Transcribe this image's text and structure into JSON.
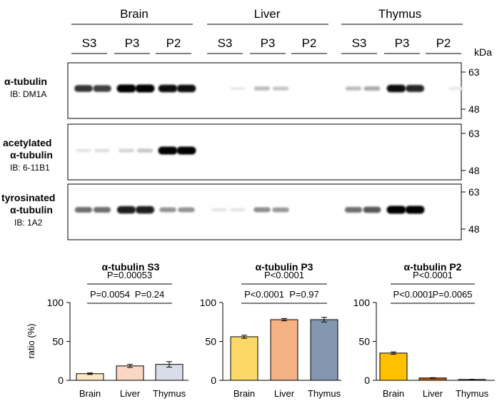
{
  "blot": {
    "tissues": [
      "Brain",
      "Liver",
      "Thymus"
    ],
    "fractions": [
      "S3",
      "P3",
      "P2"
    ],
    "kda_label": "kDa",
    "panels": [
      {
        "title_lines": [
          "α-tubulin"
        ],
        "ib": "IB: DM1A",
        "markers": [
          "63",
          "48"
        ],
        "lanes": [
          0.8,
          0.75,
          1.0,
          1.0,
          0.95,
          0.95,
          0.0,
          0.03,
          0.22,
          0.18,
          0.0,
          0.0,
          0.22,
          0.3,
          0.95,
          0.85,
          0.0,
          0.03
        ]
      },
      {
        "title_lines": [
          "acetylated",
          "α-tubulin"
        ],
        "ib": "IB: 6-11B1",
        "markers": [
          "63",
          "48"
        ],
        "lanes": [
          0.05,
          0.08,
          0.12,
          0.18,
          1.0,
          1.0,
          0.0,
          0.0,
          0.0,
          0.0,
          0.0,
          0.0,
          0.0,
          0.0,
          0.0,
          0.0,
          0.0,
          0.0
        ]
      },
      {
        "title_lines": [
          "tyrosinated",
          "α-tubulin"
        ],
        "ib": "IB: 1A2",
        "markers": [
          "63",
          "48"
        ],
        "lanes": [
          0.55,
          0.55,
          0.9,
          0.9,
          0.4,
          0.4,
          0.05,
          0.05,
          0.42,
          0.38,
          0.0,
          0.0,
          0.55,
          0.65,
          1.0,
          1.0,
          0.0,
          0.0
        ]
      }
    ]
  },
  "chart_data": [
    {
      "type": "bar",
      "title": "α-tubulin S3",
      "ylabel": "ratio (%)",
      "ylim": [
        0,
        100
      ],
      "yticks": [
        "0",
        "50",
        "100"
      ],
      "categories": [
        "Brain",
        "Liver",
        "Thymus"
      ],
      "values": [
        8.5,
        18.5,
        20.5
      ],
      "errors": [
        1.0,
        2.0,
        3.5
      ],
      "colors": [
        "#fde8c4",
        "#fad6c4",
        "#d8dde8"
      ],
      "comparisons": [
        {
          "from": 0,
          "to": 2,
          "label": "P=0.00053"
        },
        {
          "from": 0,
          "to": 1,
          "label": "P=0.0054"
        },
        {
          "from": 1,
          "to": 2,
          "label": "P=0.24"
        }
      ]
    },
    {
      "type": "bar",
      "title": "α-tubulin P3",
      "ylabel": "",
      "ylim": [
        0,
        100
      ],
      "yticks": [
        "0",
        "50",
        "100"
      ],
      "categories": [
        "Brain",
        "Liver",
        "Thymus"
      ],
      "values": [
        56,
        78,
        78
      ],
      "errors": [
        2.0,
        1.5,
        3.0
      ],
      "colors": [
        "#fcd967",
        "#f4b183",
        "#8497b0"
      ],
      "comparisons": [
        {
          "from": 0,
          "to": 2,
          "label": "P<0.0001"
        },
        {
          "from": 0,
          "to": 1,
          "label": "P<0.0001"
        },
        {
          "from": 1,
          "to": 2,
          "label": "P=0.97"
        }
      ]
    },
    {
      "type": "bar",
      "title": "α-tubulin P2",
      "ylabel": "",
      "ylim": [
        0,
        100
      ],
      "yticks": [
        "0",
        "50",
        "100"
      ],
      "categories": [
        "Brain",
        "Liver",
        "Thymus"
      ],
      "values": [
        35,
        3,
        1
      ],
      "errors": [
        1.5,
        0.4,
        0.3
      ],
      "colors": [
        "#ffc000",
        "#c55a11",
        "#333f50"
      ],
      "comparisons": [
        {
          "from": 0,
          "to": 2,
          "label": "P<0.0001"
        },
        {
          "from": 0,
          "to": 1,
          "label": "P<0.0001"
        },
        {
          "from": 1,
          "to": 2,
          "label": "P=0.0065"
        }
      ]
    }
  ]
}
